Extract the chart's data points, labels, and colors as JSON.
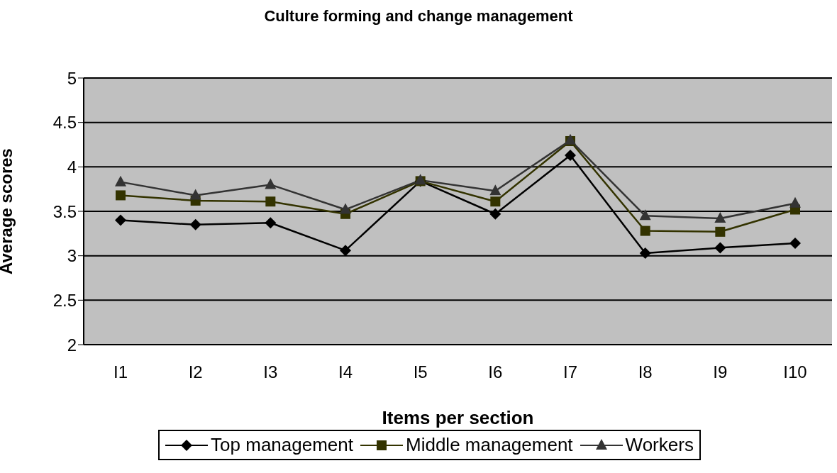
{
  "chart_data": {
    "type": "line",
    "title": "Culture forming and change management",
    "xlabel": "Items per section",
    "ylabel": "Average scores",
    "categories": [
      "I1",
      "I2",
      "I3",
      "I4",
      "I5",
      "I6",
      "I7",
      "I8",
      "I9",
      "I10"
    ],
    "series": [
      {
        "name": "Top management",
        "color": "#000000",
        "marker": "diamond",
        "values": [
          3.4,
          3.35,
          3.37,
          3.06,
          3.84,
          3.47,
          4.13,
          3.03,
          3.09,
          3.14
        ]
      },
      {
        "name": "Middle management",
        "color": "#333300",
        "marker": "square",
        "values": [
          3.68,
          3.62,
          3.61,
          3.47,
          3.84,
          3.61,
          4.29,
          3.28,
          3.27,
          3.52
        ]
      },
      {
        "name": "Workers",
        "color": "#333333",
        "marker": "triangle",
        "values": [
          3.83,
          3.68,
          3.8,
          3.52,
          3.85,
          3.73,
          4.3,
          3.45,
          3.42,
          3.59
        ]
      }
    ],
    "ylim": [
      2,
      5
    ],
    "yticks": [
      2,
      2.5,
      3,
      3.5,
      4,
      4.5,
      5
    ],
    "grid": "y",
    "legend": "bottom",
    "line_style": "solid"
  }
}
